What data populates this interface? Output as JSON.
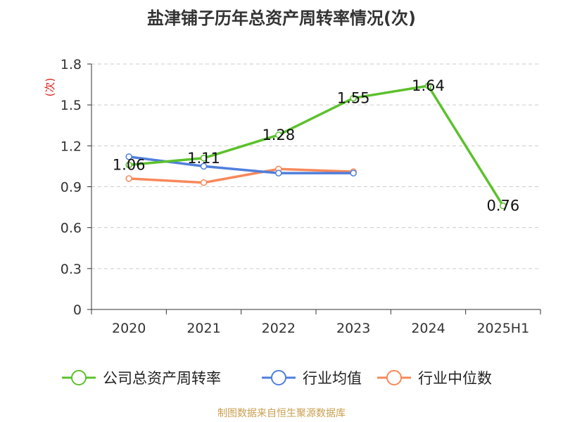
{
  "chart_data": {
    "type": "line",
    "title": "盐津铺子历年总资产周转率情况(次)",
    "ylabel": "(次)",
    "xlabel": "",
    "categories": [
      "2020",
      "2021",
      "2022",
      "2023",
      "2024",
      "2025H1"
    ],
    "y_ticks": [
      "0",
      "0.3",
      "0.6",
      "0.9",
      "1.2",
      "1.5",
      "1.8"
    ],
    "ylim": [
      0,
      1.8
    ],
    "grid": "horizontal dashed",
    "legend_position": "bottom",
    "series": [
      {
        "name": "公司总资产周转率",
        "color": "#5cc12d",
        "values": [
          1.06,
          1.11,
          1.28,
          1.55,
          1.64,
          0.76
        ],
        "labels": [
          "1.06",
          "1.11",
          "1.28",
          "1.55",
          "1.64",
          "0.76"
        ]
      },
      {
        "name": "行业均值",
        "color": "#4f7fdc",
        "values": [
          1.12,
          1.05,
          1.0,
          1.0,
          null,
          null
        ]
      },
      {
        "name": "行业中位数",
        "color": "#f8885a",
        "values": [
          0.96,
          0.93,
          1.03,
          1.01,
          null,
          null
        ]
      }
    ]
  },
  "source_note": "制图数据来自恒生聚源数据库",
  "colors": {
    "axis": "#333333",
    "grid": "#cccccc",
    "ylabel": "#e02020",
    "source": "#c8a050"
  }
}
